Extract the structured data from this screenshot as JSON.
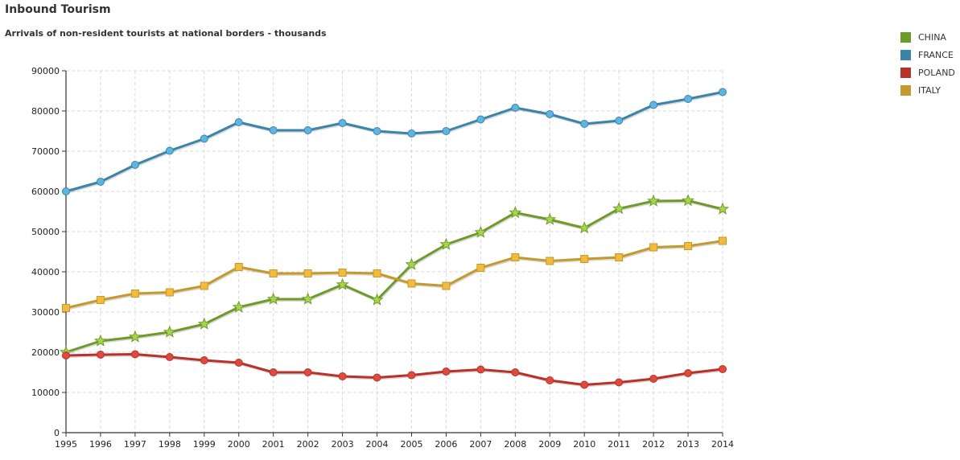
{
  "chart_data": {
    "type": "line",
    "title": "Inbound Tourism",
    "subtitle": "Arrivals of non-resident tourists at national borders - thousands",
    "x": [
      1995,
      1996,
      1997,
      1998,
      1999,
      2000,
      2001,
      2002,
      2003,
      2004,
      2005,
      2006,
      2007,
      2008,
      2009,
      2010,
      2011,
      2012,
      2013,
      2014
    ],
    "ylim": [
      0,
      90000
    ],
    "yticks": [
      0,
      10000,
      20000,
      30000,
      40000,
      50000,
      60000,
      70000,
      80000,
      90000
    ],
    "grid": true,
    "legend_position": "top-right",
    "series": [
      {
        "name": "CHINA",
        "color": "#6e9a28",
        "marker": "star",
        "marker_color": "#a6d64a",
        "values": [
          20000,
          22800,
          23800,
          25000,
          27000,
          31200,
          33200,
          33200,
          36800,
          33000,
          41800,
          46800,
          49800,
          54700,
          53000,
          50900,
          55700,
          57600,
          57700,
          55600
        ]
      },
      {
        "name": "FRANCE",
        "color": "#3a84a8",
        "marker": "circle",
        "marker_color": "#5bb7e2",
        "values": [
          60000,
          62400,
          66600,
          70100,
          73100,
          77200,
          75200,
          75200,
          77000,
          75000,
          74400,
          75000,
          77900,
          80800,
          79200,
          76800,
          77600,
          81500,
          83000,
          84700
        ]
      },
      {
        "name": "POLAND",
        "color": "#b8312b",
        "marker": "circle",
        "marker_color": "#e04a3c",
        "values": [
          19200,
          19400,
          19500,
          18800,
          18000,
          17400,
          15000,
          15000,
          14000,
          13700,
          14300,
          15200,
          15700,
          15000,
          13000,
          11900,
          12500,
          13400,
          14800,
          15800
        ]
      },
      {
        "name": "ITALY",
        "color": "#c49a2c",
        "marker": "square",
        "marker_color": "#f4ba3a",
        "values": [
          31000,
          33000,
          34600,
          34900,
          36500,
          41200,
          39600,
          39600,
          39800,
          39600,
          37100,
          36500,
          41000,
          43600,
          42700,
          43200,
          43600,
          46100,
          46400,
          47700
        ]
      }
    ]
  }
}
